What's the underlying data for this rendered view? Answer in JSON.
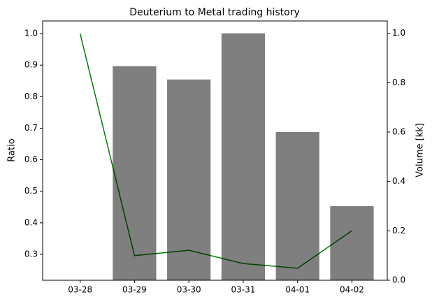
{
  "chart_data": {
    "type": "combo",
    "title": "Deuterium to Metal trading history",
    "ylabel": "Ratio",
    "y2label": "Volume [kk]",
    "categories": [
      "03-28",
      "03-29",
      "03-30",
      "03-31",
      "04-01",
      "04-02"
    ],
    "series": [
      {
        "type": "line",
        "color": "#008000",
        "values": [
          1.0,
          0.296,
          0.313,
          0.271,
          0.256,
          0.375
        ]
      },
      {
        "type": "bar",
        "axis": "y2",
        "color": "#000000",
        "opacity": 0.5,
        "values": [
          0,
          0.867,
          0.813,
          1.0,
          0.6,
          0.3
        ]
      }
    ],
    "ylim": [
      0.218,
      1.04
    ],
    "yticks": [
      0.3,
      0.4,
      0.5,
      0.6,
      0.7,
      0.8,
      0.9,
      {
        "value": 1.0,
        "label": "1.0"
      }
    ],
    "y2lim": [
      0,
      1.05
    ],
    "y2ticks": [
      {
        "value": 0,
        "label": "0.0"
      },
      0.2,
      0.4,
      0.6,
      0.8,
      {
        "value": 1.0,
        "label": "1.0"
      }
    ]
  }
}
